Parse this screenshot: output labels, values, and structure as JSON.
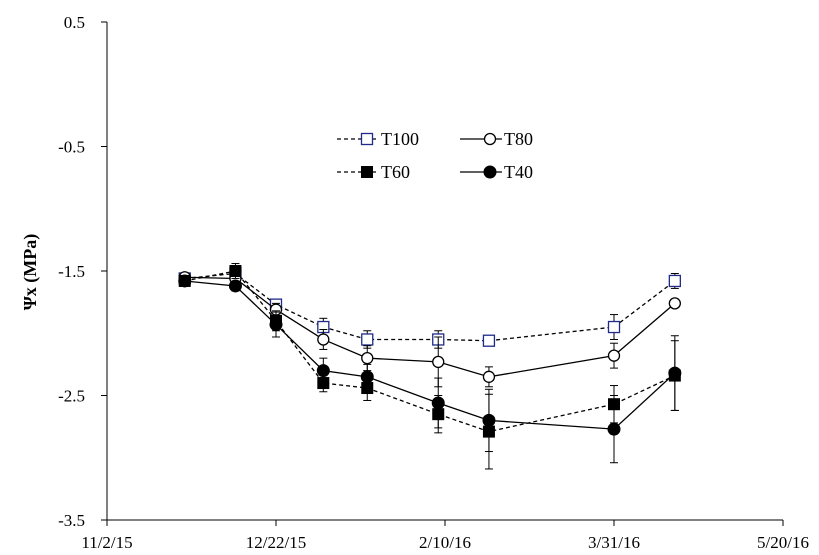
{
  "chart_data": {
    "type": "line",
    "title": "",
    "xlabel": "",
    "ylabel": "Ψx (MPa)",
    "x_tick_labels": [
      "11/2/15",
      "12/22/15",
      "2/10/16",
      "3/31/16",
      "5/20/16"
    ],
    "xlim": [
      "2015-11-02",
      "2016-05-20"
    ],
    "y_tick_labels": [
      "0.5",
      "-0.5",
      "-1.5",
      "-2.5",
      "-3.5"
    ],
    "ylim": [
      -3.5,
      0.5
    ],
    "grid": false,
    "legend_position": "center-top",
    "x": [
      "2015-11-25",
      "2015-12-10",
      "2015-12-22",
      "2016-01-05",
      "2016-01-18",
      "2016-02-08",
      "2016-02-23",
      "2016-03-31",
      "2016-04-18"
    ],
    "series": [
      {
        "name": "T100",
        "marker": "open-square",
        "line": "dashed",
        "color": "#1f2a8a",
        "values": [
          -1.56,
          -1.52,
          -1.77,
          -1.95,
          -2.05,
          -2.05,
          -2.06,
          -1.95,
          -1.58
        ],
        "errors": [
          0.02,
          0.03,
          0.03,
          0.07,
          0.07,
          0.07,
          0.03,
          0.1,
          0.06
        ]
      },
      {
        "name": "T80",
        "marker": "open-circle",
        "line": "solid",
        "color": "#000000",
        "values": [
          -1.55,
          -1.56,
          -1.81,
          -2.05,
          -2.2,
          -2.23,
          -2.35,
          -2.18,
          -1.76
        ],
        "errors": [
          0.02,
          0.03,
          0.05,
          0.08,
          0.1,
          0.2,
          0.08,
          0.1,
          0.03
        ]
      },
      {
        "name": "T60",
        "marker": "filled-square",
        "line": "dashed",
        "color": "#000000",
        "values": [
          -1.58,
          -1.5,
          -1.9,
          -2.4,
          -2.44,
          -2.65,
          -2.79,
          -2.57,
          -2.34
        ],
        "errors": [
          0.03,
          0.06,
          0.08,
          0.07,
          0.1,
          0.15,
          0.3,
          0.15,
          0.28
        ]
      },
      {
        "name": "T40",
        "marker": "filled-circle",
        "line": "solid",
        "color": "#000000",
        "values": [
          -1.58,
          -1.62,
          -1.93,
          -2.3,
          -2.35,
          -2.56,
          -2.7,
          -2.77,
          -2.32
        ],
        "errors": [
          0.03,
          0.04,
          0.1,
          0.1,
          0.1,
          0.2,
          0.25,
          0.27,
          0.3
        ]
      }
    ]
  }
}
